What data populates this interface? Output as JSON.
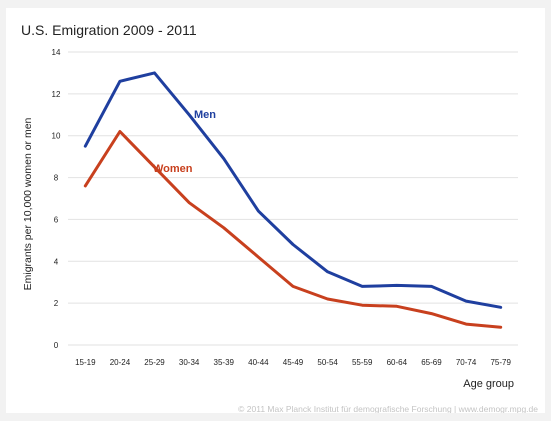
{
  "chart_data": {
    "type": "line",
    "title": "U.S. Emigration 2009 - 2011",
    "xlabel": "Age group",
    "ylabel": "Emigrants per 10,000 women or men",
    "ylim": [
      0,
      14
    ],
    "yticks": [
      "0",
      "2",
      "4",
      "6",
      "8",
      "10",
      "12",
      "14"
    ],
    "grid": true,
    "categories": [
      "15-19",
      "20-24",
      "25-29",
      "30-34",
      "35-39",
      "40-44",
      "45-49",
      "50-54",
      "55-59",
      "60-64",
      "65-69",
      "70-74",
      "75-79"
    ],
    "series": [
      {
        "name": "Men",
        "color": "#1f3f9f",
        "values": [
          9.5,
          12.6,
          13.0,
          11.0,
          8.9,
          6.4,
          4.8,
          3.5,
          2.8,
          2.85,
          2.8,
          2.1,
          1.8
        ]
      },
      {
        "name": "Women",
        "color": "#c8401e",
        "values": [
          7.6,
          10.2,
          8.5,
          6.8,
          5.6,
          4.2,
          2.8,
          2.2,
          1.9,
          1.85,
          1.5,
          1.0,
          0.85
        ]
      }
    ]
  },
  "credit": "© 2011 Max Planck Institut für demografische Forschung | www.demogr.mpg.de"
}
